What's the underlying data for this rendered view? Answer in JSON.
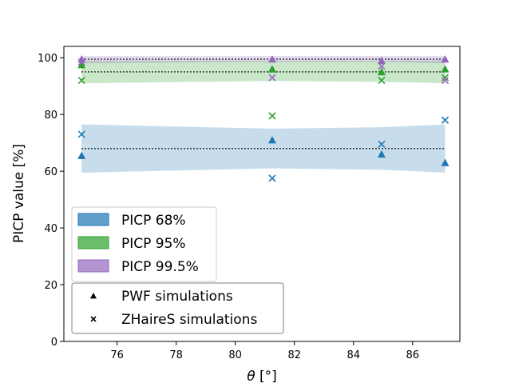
{
  "chart_data": {
    "type": "scatter",
    "title": "",
    "xlabel": "θ [°]",
    "xlabel_symbol": "θ",
    "xlabel_unit": " [°]",
    "ylabel": "PICP value [%]",
    "xlim": [
      74.2,
      87.6
    ],
    "ylim": [
      0,
      104
    ],
    "xticks": [
      76,
      78,
      80,
      82,
      84,
      86
    ],
    "yticks": [
      0,
      20,
      40,
      60,
      80,
      100
    ],
    "grid": false,
    "x": [
      74.8,
      81.25,
      84.95,
      87.1
    ],
    "bands": [
      {
        "name": "PICP 68%",
        "color": "#1f77b4",
        "target": 68,
        "lower": [
          59.5,
          61.0,
          60.5,
          59.5
        ],
        "upper": [
          76.5,
          75.0,
          75.5,
          76.5
        ]
      },
      {
        "name": "PICP 95%",
        "color": "#2ca02c",
        "target": 95,
        "lower": [
          91.0,
          91.8,
          91.5,
          91.0
        ],
        "upper": [
          99.0,
          99.0,
          99.0,
          99.0
        ]
      },
      {
        "name": "PICP 99.5%",
        "color": "#9467bd",
        "target": 99.5,
        "lower": [
          98.0,
          98.5,
          98.5,
          98.0
        ],
        "upper": [
          100.6,
          100.6,
          100.6,
          100.6
        ]
      }
    ],
    "series": [
      {
        "name": "PWF simulations",
        "marker": "triangle",
        "band": "PICP 68%",
        "color": "#1f77b4",
        "values": [
          65.5,
          71.0,
          66.0,
          63.0
        ]
      },
      {
        "name": "PWF simulations",
        "marker": "triangle",
        "band": "PICP 95%",
        "color": "#2ca02c",
        "values": [
          97.5,
          96.0,
          95.0,
          96.0
        ]
      },
      {
        "name": "PWF simulations",
        "marker": "triangle",
        "band": "PICP 99.5%",
        "color": "#9467bd",
        "values": [
          99.5,
          99.5,
          99.0,
          99.5
        ]
      },
      {
        "name": "ZHaireS simulations",
        "marker": "x",
        "band": "PICP 68%",
        "color": "#1f77b4",
        "values": [
          73.0,
          57.5,
          69.5,
          78.0
        ]
      },
      {
        "name": "ZHaireS simulations",
        "marker": "x",
        "band": "PICP 95%",
        "color": "#2ca02c",
        "values": [
          92.0,
          79.5,
          92.0,
          93.0
        ]
      },
      {
        "name": "ZHaireS simulations",
        "marker": "x",
        "band": "PICP 99.5%",
        "color": "#9467bd",
        "values": [
          98.5,
          93.0,
          97.0,
          92.0
        ]
      }
    ],
    "legend_bands": {
      "placement": "lower-left",
      "entries": [
        "PICP 68%",
        "PICP 95%",
        "PICP 99.5%"
      ]
    },
    "legend_markers": {
      "placement": "bottom-left",
      "entries": [
        "PWF simulations",
        "ZHaireS simulations"
      ]
    }
  }
}
